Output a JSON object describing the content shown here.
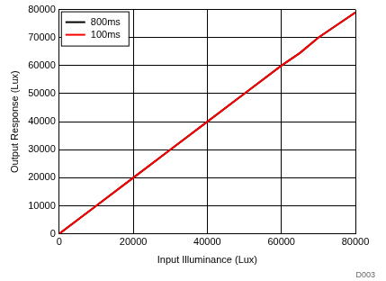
{
  "chart_data": {
    "type": "line",
    "x_label": "Input Illuminance (Lux)",
    "y_label": "Output Response (Lux)",
    "annotation": "D003",
    "x": [
      0,
      10000,
      20000,
      30000,
      40000,
      50000,
      60000,
      65000,
      70000,
      80000
    ],
    "series": [
      {
        "name": "800ms",
        "color": "#000000",
        "values": [
          0,
          10000,
          20000,
          30000,
          40000,
          50000,
          60000,
          64500,
          70000,
          79000
        ]
      },
      {
        "name": "100ms",
        "color": "#ff0000",
        "values": [
          0,
          10000,
          20000,
          30000,
          40000,
          50000,
          60000,
          64500,
          70000,
          79000
        ]
      }
    ],
    "xlim": [
      0,
      80000
    ],
    "xticks": [
      0,
      20000,
      40000,
      60000,
      80000
    ],
    "ylim": [
      0,
      80000
    ],
    "yticks": [
      0,
      10000,
      20000,
      30000,
      40000,
      50000,
      60000,
      70000,
      80000
    ],
    "grid": true,
    "legend": "upper left"
  }
}
